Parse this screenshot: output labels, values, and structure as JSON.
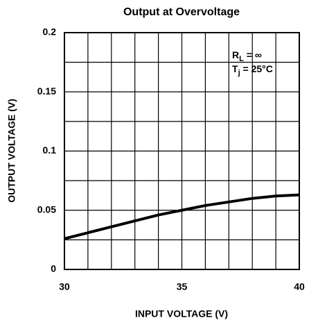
{
  "chart_data": {
    "type": "line",
    "title": "Output at Overvoltage",
    "xlabel": "INPUT VOLTAGE (V)",
    "ylabel": "OUTPUT VOLTAGE (V)",
    "x": [
      30,
      31,
      32,
      33,
      34,
      35,
      36,
      37,
      38,
      39,
      40
    ],
    "series": [
      {
        "name": "Output",
        "color": "#000000",
        "values": [
          0.026,
          0.031,
          0.036,
          0.041,
          0.046,
          0.05,
          0.054,
          0.057,
          0.06,
          0.062,
          0.063
        ]
      }
    ],
    "xlim": [
      30,
      40
    ],
    "ylim": [
      0,
      0.2
    ],
    "xticks": [
      30,
      35,
      40
    ],
    "yticks": [
      0,
      0.05,
      0.1,
      0.15,
      0.2
    ],
    "xgrid": [
      30,
      31,
      32,
      33,
      34,
      35,
      36,
      37,
      38,
      39,
      40
    ],
    "ygrid": [
      0,
      0.025,
      0.05,
      0.075,
      0.1,
      0.125,
      0.15,
      0.175,
      0.2
    ],
    "grid": true,
    "annotations": [
      [
        "R",
        "L",
        " = ∞"
      ],
      [
        "T",
        "j",
        " = 25°C"
      ]
    ]
  }
}
